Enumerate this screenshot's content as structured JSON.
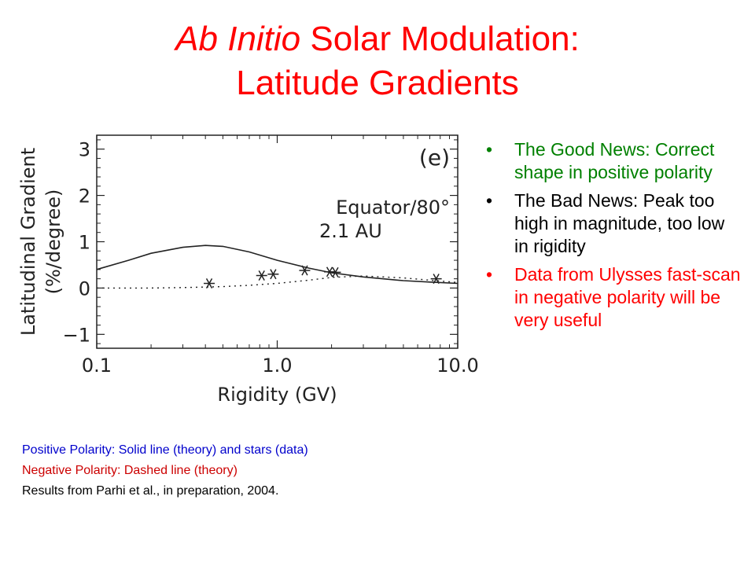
{
  "slide": {
    "title_italic": "Ab Initio",
    "title_rest": " Solar Modulation:",
    "title_line2": "Latitude Gradients",
    "title_color": "#ff0000"
  },
  "bullets": [
    {
      "text": "The Good News: Correct shape in positive polarity",
      "color": "#008000"
    },
    {
      "text": "The Bad News: Peak too high in magnitude, too low in rigidity",
      "color": "#000000"
    },
    {
      "text": "Data from Ulysses fast-scan in negative polarity will be very useful",
      "color": "#ff0000"
    }
  ],
  "caption": [
    {
      "text": "Positive Polarity: Solid line (theory) and stars (data)",
      "color": "#0000cc"
    },
    {
      "text": "Negative Polarity: Dashed line (theory)",
      "color": "#cc0000"
    },
    {
      "text": "Results from Parhi et al., in preparation, 2004.",
      "color": "#000000"
    }
  ],
  "chart_data": {
    "type": "line",
    "panel_label": "(e)",
    "annotation": [
      "Equator/80°",
      "2.1 AU"
    ],
    "xlabel": "Rigidity (GV)",
    "ylabel": [
      "Latitudinal Gradient",
      "(%/degree)"
    ],
    "x_scale": "log",
    "xlim": [
      0.1,
      10.0
    ],
    "ylim": [
      -1.3,
      3.3
    ],
    "x_ticks": [
      {
        "value": 0.1,
        "label": "0.1"
      },
      {
        "value": 1.0,
        "label": "1.0"
      },
      {
        "value": 10.0,
        "label": "10.0"
      }
    ],
    "y_ticks": [
      {
        "value": -1,
        "label": "−1"
      },
      {
        "value": 0,
        "label": "0"
      },
      {
        "value": 1,
        "label": "1"
      },
      {
        "value": 2,
        "label": "2"
      },
      {
        "value": 3,
        "label": "3"
      }
    ],
    "series": [
      {
        "style": "solid",
        "x": [
          0.1,
          0.15,
          0.2,
          0.3,
          0.4,
          0.5,
          0.7,
          1.0,
          1.5,
          2.0,
          3.0,
          5.0,
          7.0,
          10.0
        ],
        "y": [
          0.4,
          0.6,
          0.75,
          0.88,
          0.92,
          0.9,
          0.78,
          0.6,
          0.43,
          0.33,
          0.24,
          0.16,
          0.13,
          0.1
        ]
      },
      {
        "style": "dashed",
        "x": [
          0.1,
          0.2,
          0.3,
          0.5,
          0.7,
          1.0,
          1.5,
          2.0,
          3.0,
          5.0,
          7.0,
          10.0
        ],
        "y": [
          0.0,
          0.0,
          0.01,
          0.03,
          0.06,
          0.1,
          0.17,
          0.23,
          0.26,
          0.22,
          0.17,
          0.12
        ]
      },
      {
        "style": "stars",
        "x": [
          0.42,
          0.82,
          0.95,
          1.42,
          1.95,
          2.1,
          7.6
        ],
        "y": [
          0.1,
          0.27,
          0.3,
          0.38,
          0.35,
          0.34,
          0.2
        ]
      }
    ]
  }
}
